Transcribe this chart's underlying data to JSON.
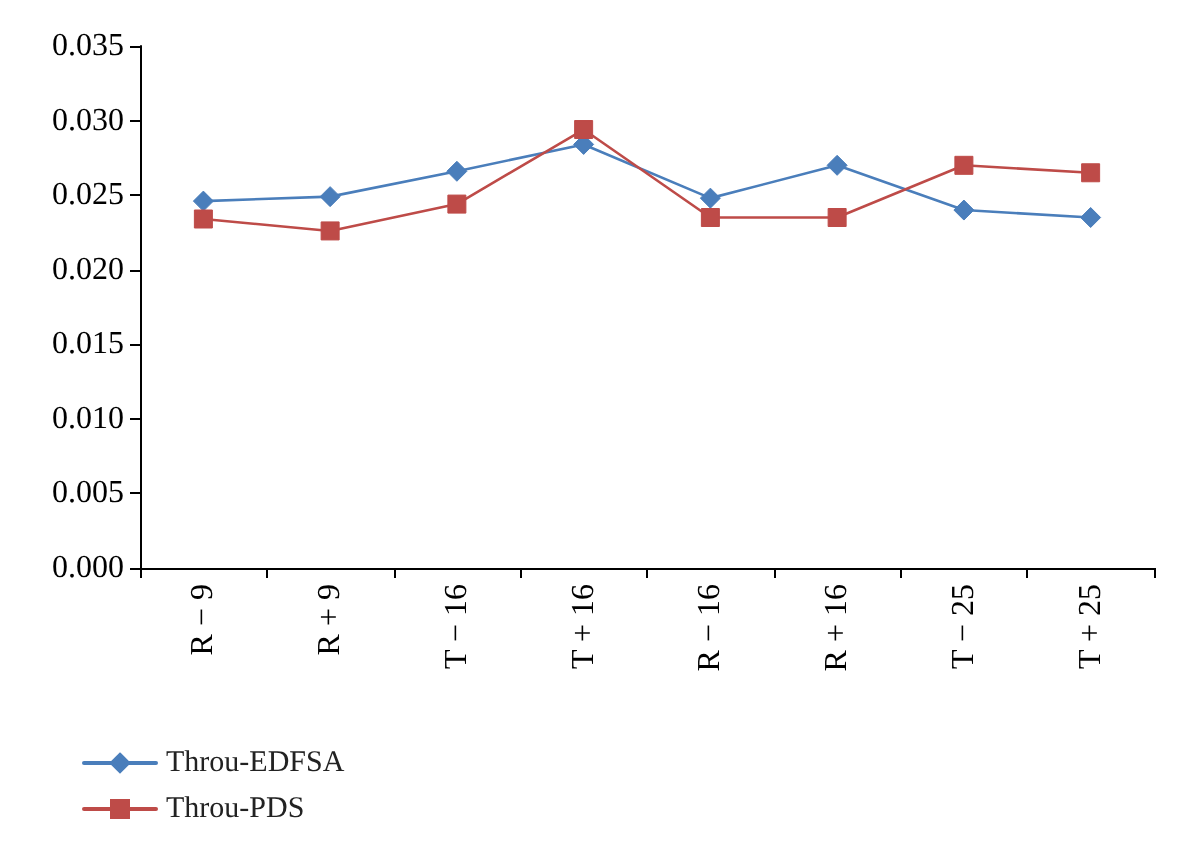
{
  "chart_data": {
    "type": "line",
    "categories": [
      "R − 9",
      "R + 9",
      "T − 16",
      "T + 16",
      "R − 16",
      "R + 16",
      "T − 25",
      "T + 25"
    ],
    "series": [
      {
        "name": "Throu-EDFSA",
        "color": "#4a7ebb",
        "marker": "diamond",
        "values": [
          0.0246,
          0.0249,
          0.0266,
          0.0284,
          0.0248,
          0.027,
          0.024,
          0.0235
        ]
      },
      {
        "name": "Throu-PDS",
        "color": "#be4b48",
        "marker": "square",
        "values": [
          0.0234,
          0.0226,
          0.0244,
          0.0294,
          0.0235,
          0.0235,
          0.027,
          0.0265
        ]
      }
    ],
    "ylim": [
      0,
      0.035
    ],
    "yticks": [
      {
        "value": 0,
        "label": "0.000"
      },
      0.005,
      {
        "value": 0.01,
        "label": "0.010"
      },
      0.015,
      {
        "value": 0.02,
        "label": "0.020"
      },
      0.025,
      {
        "value": 0.03,
        "label": "0.030"
      },
      0.035
    ],
    "grid": false,
    "legend": "bottom left",
    "line_style": "solid"
  }
}
